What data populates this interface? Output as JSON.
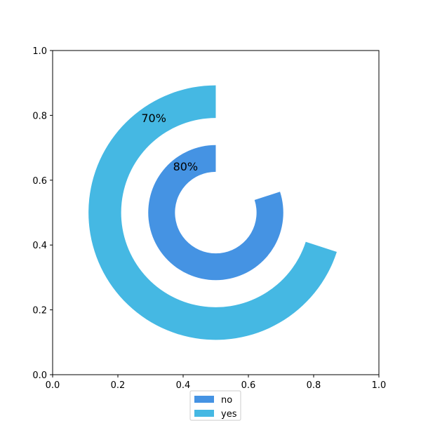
{
  "chart_data": {
    "type": "radial-bar",
    "xlim": [
      0,
      1
    ],
    "ylim": [
      0,
      1
    ],
    "x_ticks": [
      "0.0",
      "0.2",
      "0.4",
      "0.6",
      "0.8",
      "1.0"
    ],
    "y_ticks": [
      "0.0",
      "0.2",
      "0.4",
      "0.6",
      "0.8",
      "1.0"
    ],
    "center": [
      0.5,
      0.5
    ],
    "series": [
      {
        "name": "no",
        "value": 80,
        "label": "80%",
        "inner_radius": 0.125,
        "outer_radius": 0.207,
        "color": "#4593e3"
      },
      {
        "name": "yes",
        "value": 70,
        "label": "70%",
        "inner_radius": 0.29,
        "outer_radius": 0.39,
        "color": "#45b8e3"
      }
    ],
    "legend_position": "bottom-center",
    "grid": false
  }
}
